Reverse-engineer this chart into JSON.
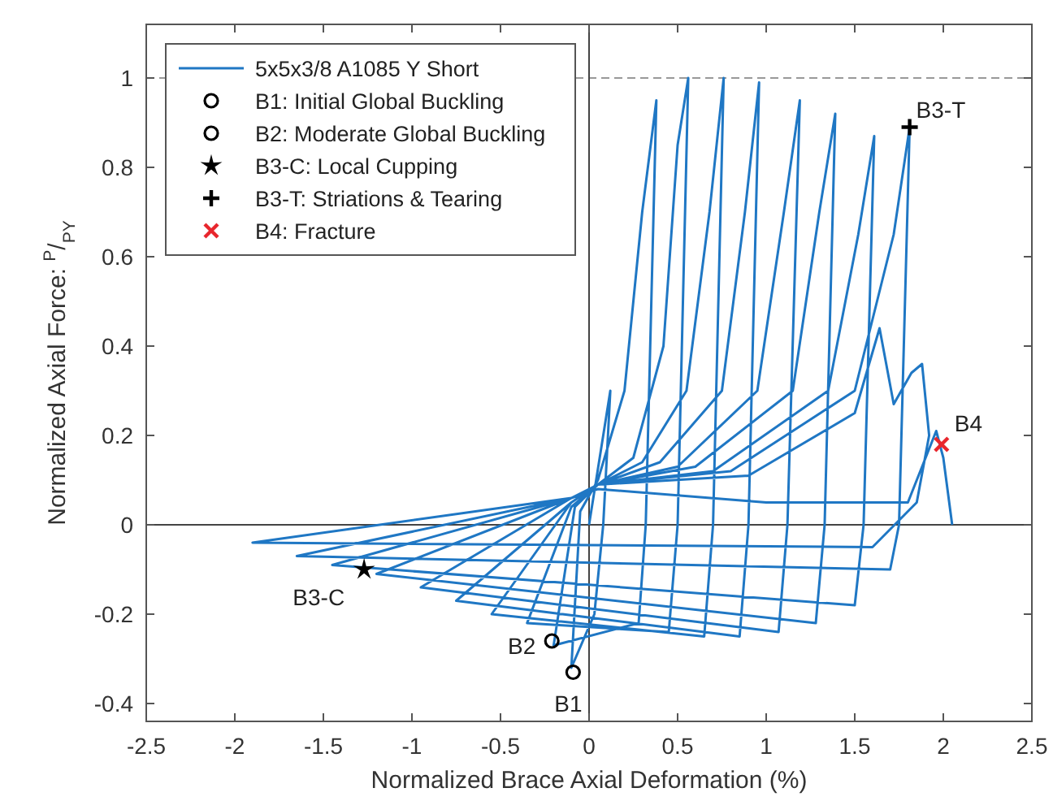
{
  "chart_data": {
    "type": "line",
    "xlabel": "Normalized Brace Axial Deformation (%)",
    "ylabel": "Normalized Axial Force: $^{P}$/$_{P}$$_{Y}$",
    "xlim": [
      -2.5,
      2.5
    ],
    "ylim": [
      -0.44,
      1.12
    ],
    "xticks": [
      -2.5,
      -2,
      -1.5,
      -1,
      -0.5,
      0,
      0.5,
      1,
      1.5,
      2,
      2.5
    ],
    "yticks": [
      -0.4,
      -0.2,
      0,
      0.2,
      0.4,
      0.6,
      0.8,
      1
    ],
    "grid": false,
    "legend": "top left",
    "line_style": "solid",
    "ref_lines": [
      {
        "axis": "y",
        "value": 1,
        "color": "#999999",
        "line_style": "dashed"
      },
      {
        "axis": "x",
        "value": 0,
        "color": "#444444",
        "line_style": "solid"
      },
      {
        "axis": "y",
        "value": 0,
        "color": "#444444",
        "line_style": "solid"
      }
    ],
    "series": [
      {
        "name": "5x5x3/8 A1085 Y Short",
        "color": "#1f77c4",
        "marker": "none",
        "x": [
          0,
          0.12,
          0.08,
          0.03,
          -0.1,
          -0.05,
          0.05,
          0.2,
          0.3,
          0.38,
          0.32,
          0.28,
          -0.2,
          -0.08,
          0.05,
          0.25,
          0.42,
          0.5,
          0.56,
          0.5,
          0.45,
          -0.35,
          -0.1,
          0.05,
          0.3,
          0.55,
          0.68,
          0.76,
          0.7,
          0.65,
          -0.55,
          -0.1,
          0.05,
          0.4,
          0.75,
          0.88,
          0.96,
          0.9,
          0.85,
          -0.75,
          -0.1,
          0.05,
          0.5,
          0.95,
          1.1,
          1.19,
          1.12,
          1.07,
          -0.95,
          -0.1,
          0.05,
          0.6,
          1.15,
          1.3,
          1.39,
          1.33,
          1.28,
          -1.2,
          -0.1,
          0.05,
          0.7,
          1.35,
          1.52,
          1.61,
          1.55,
          1.5,
          -1.45,
          -0.1,
          0.05,
          0.8,
          1.5,
          1.72,
          1.81,
          1.75,
          1.7,
          -1.65,
          -0.1,
          0.05,
          0.9,
          1.5,
          1.64,
          1.72,
          1.82,
          1.88,
          1.92,
          1.85,
          1.6,
          -1.9,
          -0.1,
          0.05,
          1.0,
          1.8,
          1.9,
          1.96,
          2.0,
          2.05
        ],
        "values": [
          0,
          0.3,
          0,
          -0.2,
          -0.32,
          0.03,
          0.1,
          0.3,
          0.7,
          0.95,
          0,
          -0.22,
          -0.27,
          0.04,
          0.09,
          0.15,
          0.4,
          0.85,
          1.0,
          0,
          -0.24,
          -0.22,
          0.04,
          0.09,
          0.14,
          0.3,
          0.7,
          1.0,
          0,
          -0.25,
          -0.2,
          0.05,
          0.09,
          0.14,
          0.3,
          0.7,
          0.99,
          0,
          -0.25,
          -0.17,
          0.05,
          0.09,
          0.13,
          0.3,
          0.7,
          0.95,
          0,
          -0.24,
          -0.14,
          0.06,
          0.09,
          0.13,
          0.3,
          0.7,
          0.92,
          0,
          -0.22,
          -0.11,
          0.06,
          0.09,
          0.12,
          0.3,
          0.65,
          0.87,
          0,
          -0.18,
          -0.09,
          0.06,
          0.09,
          0.12,
          0.3,
          0.65,
          0.89,
          0,
          -0.1,
          -0.07,
          0.06,
          0.09,
          0.11,
          0.25,
          0.44,
          0.27,
          0.34,
          0.36,
          0.2,
          0.05,
          -0.05,
          -0.04,
          0.06,
          0.08,
          0.05,
          0.05,
          0.15,
          0.21,
          0.15,
          0
        ]
      },
      {
        "name": "B1: Initial Global Buckling",
        "type": "scatter",
        "color": "#000000",
        "marker": "circle",
        "x": [
          -0.09
        ],
        "values": [
          -0.33
        ]
      },
      {
        "name": "B2: Moderate Global Buckling",
        "type": "scatter",
        "color": "#000000",
        "marker": "circle",
        "x": [
          -0.21
        ],
        "values": [
          -0.26
        ]
      },
      {
        "name": "B3-C: Local Cupping",
        "type": "scatter",
        "color": "#000000",
        "marker": "star",
        "x": [
          -1.27
        ],
        "values": [
          -0.1
        ]
      },
      {
        "name": "B3-T: Striations & Tearing",
        "type": "scatter",
        "color": "#000000",
        "marker": "plus",
        "x": [
          1.81
        ],
        "values": [
          0.89
        ]
      },
      {
        "name": "B4: Fracture",
        "type": "scatter",
        "color": "#e8262d",
        "marker": "cross",
        "x": [
          1.99
        ],
        "values": [
          0.18
        ]
      }
    ],
    "annotations": [
      {
        "text": "B1",
        "x": -0.09,
        "y": -0.33
      },
      {
        "text": "B2",
        "x": -0.21,
        "y": -0.26
      },
      {
        "text": "B3-C",
        "x": -1.27,
        "y": -0.1
      },
      {
        "text": "B3-T",
        "x": 1.81,
        "y": 0.89
      },
      {
        "text": "B4",
        "x": 1.99,
        "y": 0.18
      }
    ]
  }
}
